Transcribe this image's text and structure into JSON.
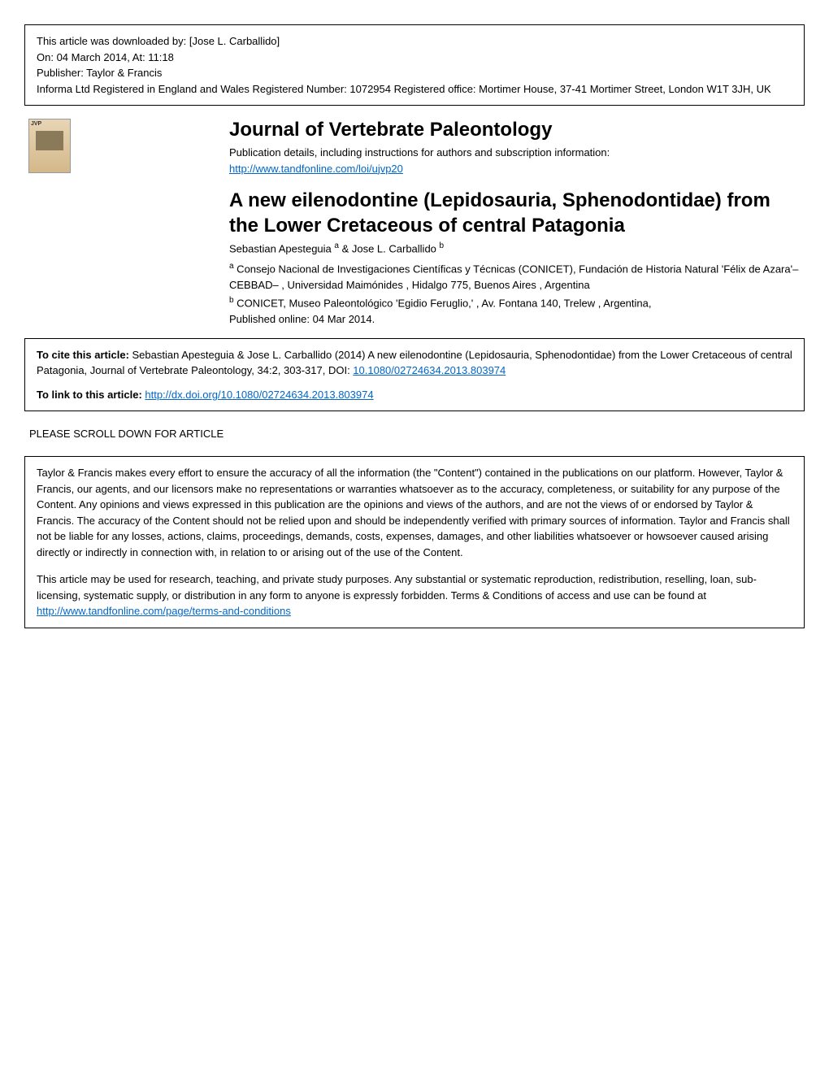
{
  "header": {
    "downloaded_by": "This article was downloaded by: [Jose L. Carballido]",
    "download_date": "On: 04 March 2014, At: 11:18",
    "publisher": "Publisher: Taylor & Francis",
    "registration": "Informa Ltd Registered in England and Wales Registered Number: 1072954 Registered office: Mortimer House, 37-41 Mortimer Street, London W1T 3JH, UK"
  },
  "journal": {
    "title": "Journal of Vertebrate Paleontology",
    "pub_info": "Publication details, including instructions for authors and subscription information:",
    "pub_link": "http://www.tandfonline.com/loi/ujvp20"
  },
  "article": {
    "title": "A new eilenodontine (Lepidosauria, Sphenodontidae) from the Lower Cretaceous of central Patagonia",
    "authors_prefix": "Sebastian Apesteguia ",
    "authors_sup_a": "a",
    "authors_mid": " & Jose L. Carballido ",
    "authors_sup_b": "b",
    "affil_a_sup": "a",
    "affil_a": " Consejo Nacional de Investigaciones Científicas y Técnicas (CONICET), Fundación de Historia Natural 'Félix de Azara'–CEBBAD– , Universidad Maimónides , Hidalgo 775, Buenos Aires , Argentina",
    "affil_b_sup": "b",
    "affil_b": " CONICET, Museo Paleontológico 'Egidio Feruglio,' , Av. Fontana 140, Trelew , Argentina,",
    "published": "Published online: 04 Mar 2014."
  },
  "citation": {
    "cite_label": "To cite this article: ",
    "cite_text": "Sebastian Apesteguia & Jose L. Carballido (2014) A new eilenodontine (Lepidosauria, Sphenodontidae) from the Lower Cretaceous of central Patagonia, Journal of Vertebrate Paleontology, 34:2, 303-317, DOI: ",
    "doi_link": "10.1080/02724634.2013.803974",
    "link_label": "To link to this article: ",
    "link_url": "http://dx.doi.org/10.1080/02724634.2013.803974"
  },
  "scroll_notice": "PLEASE SCROLL DOWN FOR ARTICLE",
  "terms": {
    "para1": "Taylor & Francis makes every effort to ensure the accuracy of all the information (the \"Content\") contained in the publications on our platform. However, Taylor & Francis, our agents, and our licensors make no representations or warranties whatsoever as to the accuracy, completeness, or suitability for any purpose of the Content. Any opinions and views expressed in this publication are the opinions and views of the authors, and are not the views of or endorsed by Taylor & Francis. The accuracy of the Content should not be relied upon and should be independently verified with primary sources of information. Taylor and Francis shall not be liable for any losses, actions, claims, proceedings, demands, costs, expenses, damages, and other liabilities whatsoever or howsoever caused arising directly or indirectly in connection with, in relation to or arising out of the use of the Content.",
    "para2_prefix": "This article may be used for research, teaching, and private study purposes. Any substantial or systematic reproduction, redistribution, reselling, loan, sub-licensing, systematic supply, or distribution in any form to anyone is expressly forbidden. Terms & Conditions of access and use can be found at ",
    "para2_link": "http://www.tandfonline.com/page/terms-and-conditions"
  },
  "colors": {
    "link": "#0066cc",
    "text": "#000000",
    "background": "#ffffff",
    "border": "#000000"
  },
  "typography": {
    "body_fontsize": 13,
    "heading_fontsize": 24,
    "font_family": "Verdana"
  }
}
